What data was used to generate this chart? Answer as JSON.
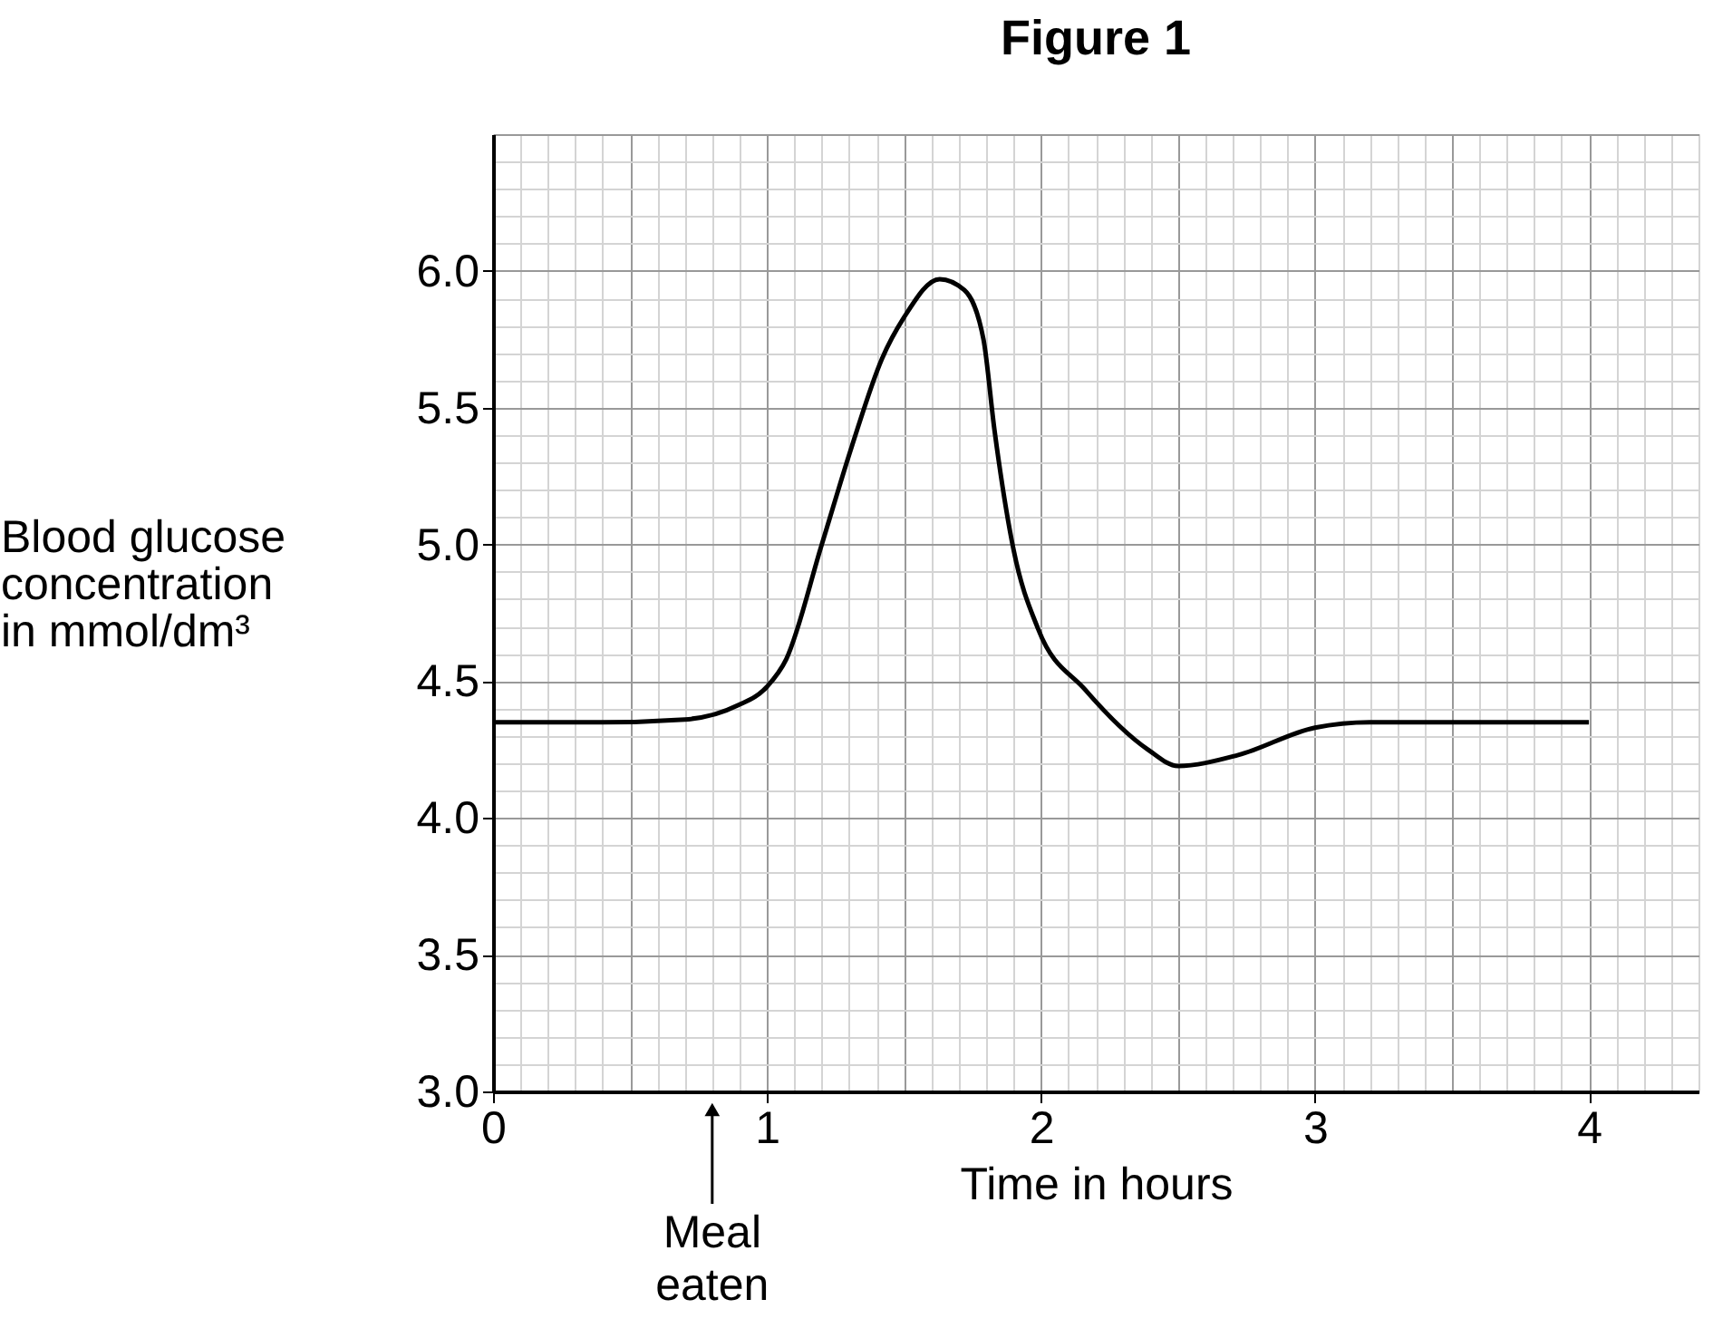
{
  "chart_data": {
    "type": "line",
    "title": "Figure 1",
    "xlabel": "Time in hours",
    "ylabel": "Blood glucose concentration in mmol/dm³",
    "x": [
      0,
      0.4,
      0.7,
      0.89,
      1.0,
      1.07,
      1.2,
      1.31,
      1.42,
      1.5,
      1.63,
      1.72,
      1.79,
      1.83,
      1.9,
      1.99,
      2.16,
      2.39,
      2.5,
      2.72,
      3.0,
      3.2,
      4.0
    ],
    "series": [
      {
        "color": "#000000",
        "values": [
          4.35,
          4.35,
          4.36,
          4.41,
          4.48,
          4.58,
          5.0,
          5.36,
          5.68,
          5.83,
          5.97,
          5.93,
          5.75,
          5.42,
          4.98,
          4.69,
          4.47,
          4.25,
          4.19,
          4.23,
          4.33,
          4.35,
          4.35
        ]
      }
    ],
    "xlim": [
      0,
      4.4
    ],
    "ylim": [
      3.0,
      6.5
    ],
    "xticks": [
      0,
      1,
      2,
      3,
      4
    ],
    "yticks": [
      {
        "value": 3.0,
        "label": "3.0"
      },
      {
        "value": 3.5,
        "label": "3.5"
      },
      {
        "value": 4.0,
        "label": "4.0"
      },
      {
        "value": 4.5,
        "label": "4.5"
      },
      {
        "value": 5.0,
        "label": "5.0"
      },
      {
        "value": 5.5,
        "label": "5.5"
      },
      {
        "value": 6.0,
        "label": "6.0"
      }
    ],
    "grid": true,
    "marker": "none",
    "line_style": "solid",
    "ref_lines": [
      {
        "axis": "x",
        "value": 0.8,
        "label": "Meal eaten"
      }
    ]
  }
}
